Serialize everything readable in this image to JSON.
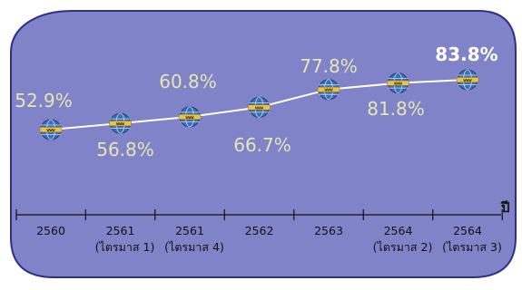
{
  "chart_data": {
    "type": "line",
    "x_unit": "ปี",
    "categories": [
      [
        "2560"
      ],
      [
        "2561",
        "(ไตรมาส 1)"
      ],
      [
        "2561",
        "(ไตรมาส 4)"
      ],
      [
        "2562"
      ],
      [
        "2563"
      ],
      [
        "2564",
        "(ไตรมาส 2)"
      ],
      [
        "2564",
        "(ไตรมาส 3)"
      ]
    ],
    "values": [
      52.9,
      56.8,
      60.8,
      66.7,
      77.8,
      81.8,
      83.8
    ],
    "data_labels": [
      "52.9%",
      "56.8%",
      "60.8%",
      "66.7%",
      "77.8%",
      "81.8%",
      "83.8%"
    ],
    "marker_icon": "globe-www-icon",
    "colors": {
      "panel": "#8183c8",
      "panel_border": "#2c2f8c",
      "line": "#ffffff",
      "label": "#e4e6b4",
      "highlight_label": "#ffffff",
      "axis": "#111111",
      "globe": "#3a6fb8",
      "www_band": "#e8c24a"
    }
  }
}
